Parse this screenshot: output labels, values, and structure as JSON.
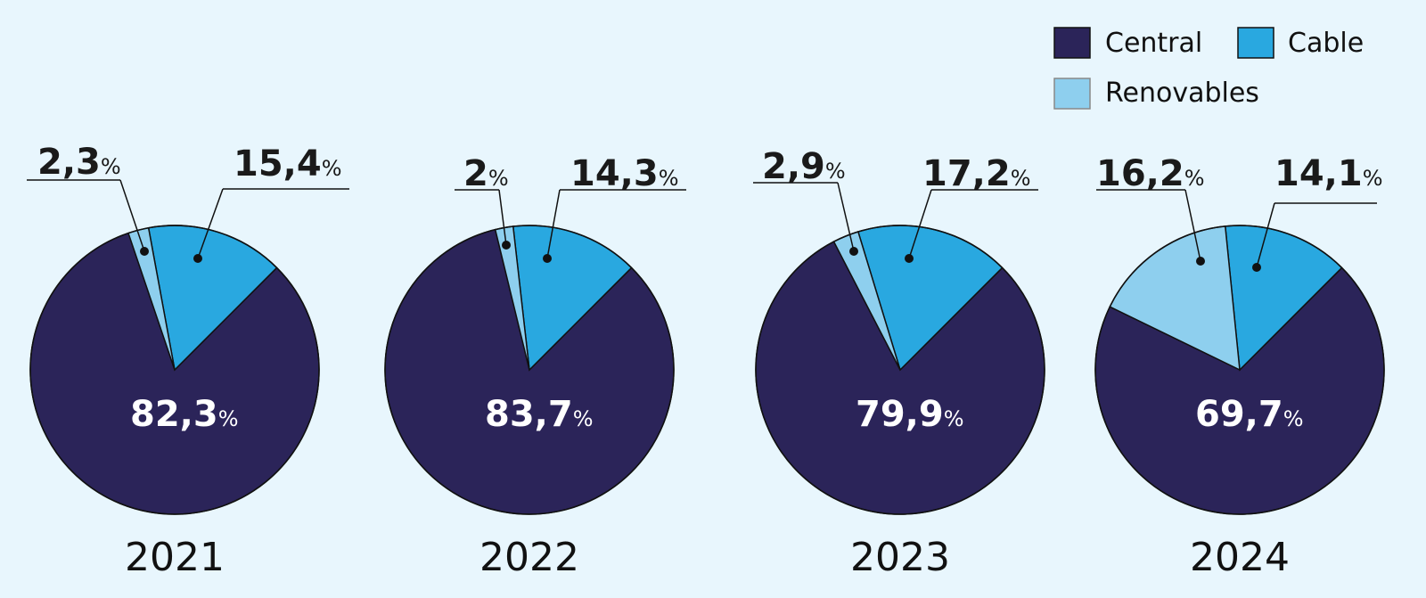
{
  "chart_data": {
    "type": "pie",
    "legend": [
      {
        "name": "Central",
        "color": "#2b2459"
      },
      {
        "name": "Cable",
        "color": "#29a8e0"
      },
      {
        "name": "Renovables",
        "color": "#8ecfee"
      }
    ],
    "legend_position": "top-right",
    "percent_sign": "%",
    "pies": [
      {
        "title": "2021",
        "central": 82.3,
        "cable": 15.4,
        "renovables": 2.3,
        "labels": {
          "central": "82,3",
          "cable": "15,4",
          "renovables": "2,3"
        }
      },
      {
        "title": "2022",
        "central": 83.7,
        "cable": 14.3,
        "renovables": 2,
        "labels": {
          "central": "83,7",
          "cable": "14,3",
          "renovables": "2"
        }
      },
      {
        "title": "2023",
        "central": 79.9,
        "cable": 17.2,
        "renovables": 2.9,
        "labels": {
          "central": "79,9",
          "cable": "17,2",
          "renovables": "2,9"
        }
      },
      {
        "title": "2024",
        "central": 69.7,
        "cable": 14.1,
        "renovables": 16.2,
        "labels": {
          "central": "69,7",
          "cable": "14,1",
          "renovables": "16,2"
        }
      }
    ]
  }
}
